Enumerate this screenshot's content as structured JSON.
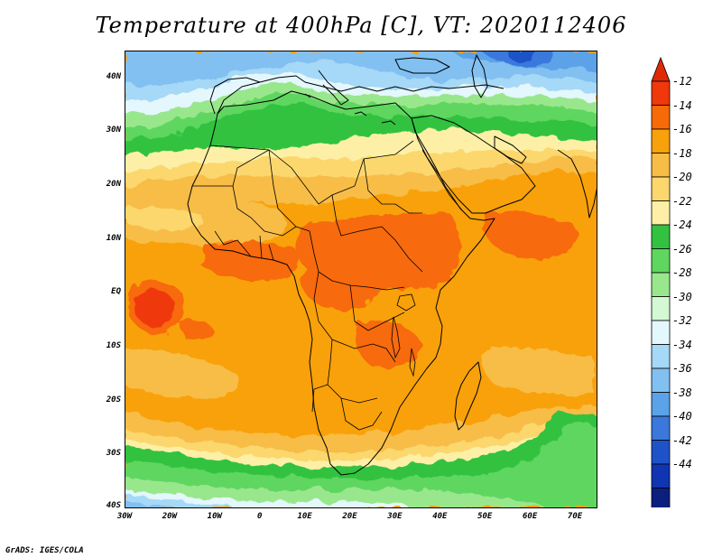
{
  "title": "Temperature at 400hPa [C], VT: 2020112406",
  "credit": "GrADS: IGES/COLA",
  "map": {
    "lat_labels": [
      "40N",
      "30N",
      "20N",
      "10N",
      "EQ",
      "10S",
      "20S",
      "30S",
      "40S"
    ],
    "lat_values": [
      40,
      30,
      20,
      10,
      0,
      -10,
      -20,
      -30,
      -40
    ],
    "lon_labels": [
      "30W",
      "20W",
      "10W",
      "0",
      "10E",
      "20E",
      "30E",
      "40E",
      "50E",
      "60E",
      "70E"
    ],
    "lon_values": [
      -30,
      -20,
      -10,
      0,
      10,
      20,
      30,
      40,
      50,
      60,
      70
    ],
    "extent": {
      "lon_min": -30,
      "lon_max": 75,
      "lat_min": -40,
      "lat_max": 45
    }
  },
  "colorbar": {
    "levels": [
      "-12",
      "-14",
      "-16",
      "-18",
      "-20",
      "-22",
      "-24",
      "-26",
      "-28",
      "-30",
      "-32",
      "-34",
      "-36",
      "-38",
      "-40",
      "-42",
      "-44"
    ],
    "colors": [
      "#f0380a",
      "#f76a08",
      "#f9a10a",
      "#f7bd47",
      "#fbd76e",
      "#fdf0a6",
      "#32c240",
      "#5fd660",
      "#99e78c",
      "#d3f8d3",
      "#e3f7fd",
      "#a6d8f7",
      "#82c0f1",
      "#5ba2e8",
      "#3a78dc",
      "#1e52c8",
      "#0f35b2",
      "#0a1f7e"
    ],
    "over_color": "#e02a06",
    "under_color": "#e6e6fa"
  }
}
